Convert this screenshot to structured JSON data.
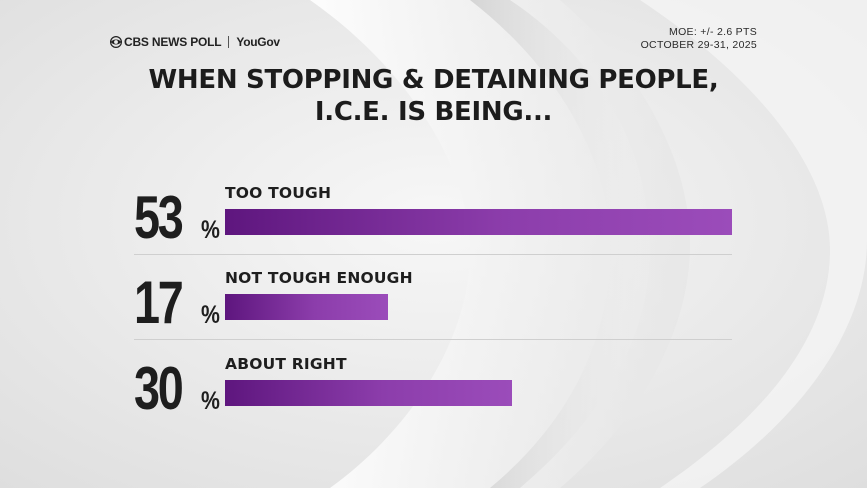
{
  "header": {
    "brand_main": "CBS NEWS POLL",
    "brand_partner": "YouGov",
    "moe": "MOE: +/- 2.6 PTS",
    "dates": "OCTOBER 29-31, 2025"
  },
  "title": {
    "line1": "WHEN STOPPING & DETAINING PEOPLE,",
    "line2": "I.C.E. IS BEING..."
  },
  "chart_data": {
    "type": "bar",
    "orientation": "horizontal",
    "title": "WHEN STOPPING & DETAINING PEOPLE, I.C.E. IS BEING...",
    "categories": [
      "TOO TOUGH",
      "NOT TOUGH ENOUGH",
      "ABOUT RIGHT"
    ],
    "values": [
      53,
      17,
      30
    ],
    "value_labels": [
      "53",
      "17",
      "30"
    ],
    "percent_symbol": "%",
    "unit": "%",
    "xlim": [
      0,
      53
    ],
    "bar_color": "#8c3dab"
  },
  "colors": {
    "bar": "#8c3dab",
    "bar_dark": "#5e167e",
    "text": "#1e1e1e",
    "background": "#ececec"
  }
}
